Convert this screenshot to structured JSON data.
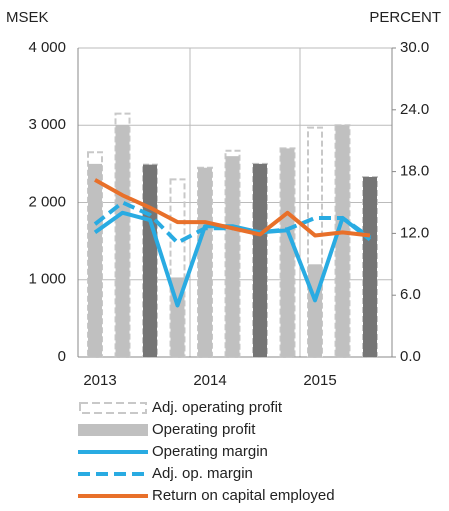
{
  "chart_data": {
    "type": "combo",
    "ylabel": "MSEK",
    "y2label": "PERCENT",
    "categories": [
      "2013",
      null,
      null,
      null,
      "2014",
      null,
      null,
      null,
      "2015",
      null,
      null
    ],
    "ylim": [
      0,
      4000
    ],
    "yticks": [
      {
        "value": 0,
        "label": "0"
      },
      {
        "value": 1000,
        "label": "1 000"
      },
      {
        "value": 2000,
        "label": "2 000"
      },
      {
        "value": 3000,
        "label": "3 000"
      },
      {
        "value": 4000,
        "label": "4 000"
      }
    ],
    "y2lim": [
      0,
      30
    ],
    "y2ticks": [
      {
        "value": 0,
        "label": "0.0"
      },
      {
        "value": 6,
        "label": "6.0"
      },
      {
        "value": 12,
        "label": "12.0"
      },
      {
        "value": 18,
        "label": "18.0"
      },
      {
        "value": 24,
        "label": "24.0"
      },
      {
        "value": 30,
        "label": "30.0"
      }
    ],
    "grid": true,
    "series": [
      {
        "name": "Adj. operating profit",
        "kind": "dashed-bar",
        "color": "#c8c8c8",
        "values": [
          2650,
          3150,
          2490,
          2300,
          2450,
          2670,
          2500,
          2700,
          2970,
          3000,
          2330
        ]
      },
      {
        "name": "Operating profit",
        "kind": "bar",
        "color": "#c0c0c0",
        "colors": [
          "#c0c0c0",
          "#c0c0c0",
          "#767676",
          "#c0c0c0",
          "#c0c0c0",
          "#c0c0c0",
          "#767676",
          "#c0c0c0",
          "#c0c0c0",
          "#c0c0c0",
          "#767676"
        ],
        "values": [
          2500,
          3000,
          2490,
          1030,
          2450,
          2600,
          2500,
          2700,
          1200,
          3000,
          2330
        ]
      },
      {
        "name": "Operating margin",
        "kind": "line",
        "axis": "y2",
        "color": "#29abe2",
        "values": [
          12.1,
          14.0,
          13.3,
          5.0,
          12.7,
          12.7,
          12.1,
          12.3,
          5.5,
          13.5,
          11.4
        ]
      },
      {
        "name": "Adj. op. margin",
        "kind": "dashed-line",
        "axis": "y2",
        "color": "#29abe2",
        "values": [
          12.9,
          15.0,
          13.8,
          11.1,
          12.5,
          12.5,
          12.1,
          12.4,
          13.5,
          13.5,
          11.6
        ]
      },
      {
        "name": "Return on capital employed",
        "kind": "line",
        "axis": "y2",
        "color": "#e8702a",
        "values": [
          17.2,
          15.7,
          14.5,
          13.1,
          13.1,
          12.5,
          11.9,
          14.0,
          11.8,
          12.1,
          11.8
        ]
      }
    ]
  }
}
